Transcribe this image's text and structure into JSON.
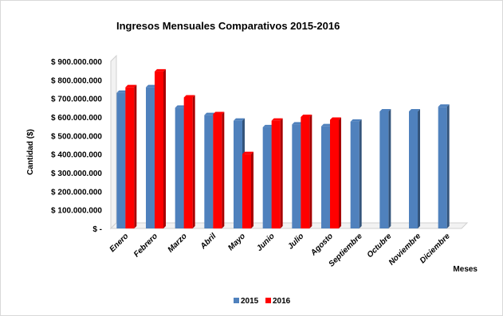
{
  "chart_data": {
    "type": "bar",
    "title": "Ingresos Mensuales Comparativos 2015-2016",
    "xlabel": "Meses",
    "ylabel": "Cantidad ($)",
    "ylim": [
      0,
      900000000
    ],
    "yticks": [
      "$ -",
      "$ 100.000.000",
      "$ 200.000.000",
      "$ 300.000.000",
      "$ 400.000.000",
      "$ 500.000.000",
      "$ 600.000.000",
      "$ 700.000.000",
      "$ 800.000.000",
      "$ 900.000.000"
    ],
    "categories": [
      "Enero",
      "Febrero",
      "Marzo",
      "Abril",
      "Mayo",
      "Junio",
      "Julio",
      "Agosto",
      "Septiembre",
      "Octubre",
      "Noviembre",
      "Diciembre"
    ],
    "series": [
      {
        "name": "2015",
        "color": "#4f81bd",
        "values": [
          730000000,
          760000000,
          650000000,
          610000000,
          580000000,
          545000000,
          560000000,
          550000000,
          575000000,
          630000000,
          630000000,
          655000000
        ]
      },
      {
        "name": "2016",
        "color": "#ff0000",
        "values": [
          760000000,
          845000000,
          705000000,
          615000000,
          400000000,
          580000000,
          600000000,
          585000000,
          null,
          null,
          null,
          null
        ]
      }
    ],
    "grid": false,
    "legend_position": "bottom"
  }
}
